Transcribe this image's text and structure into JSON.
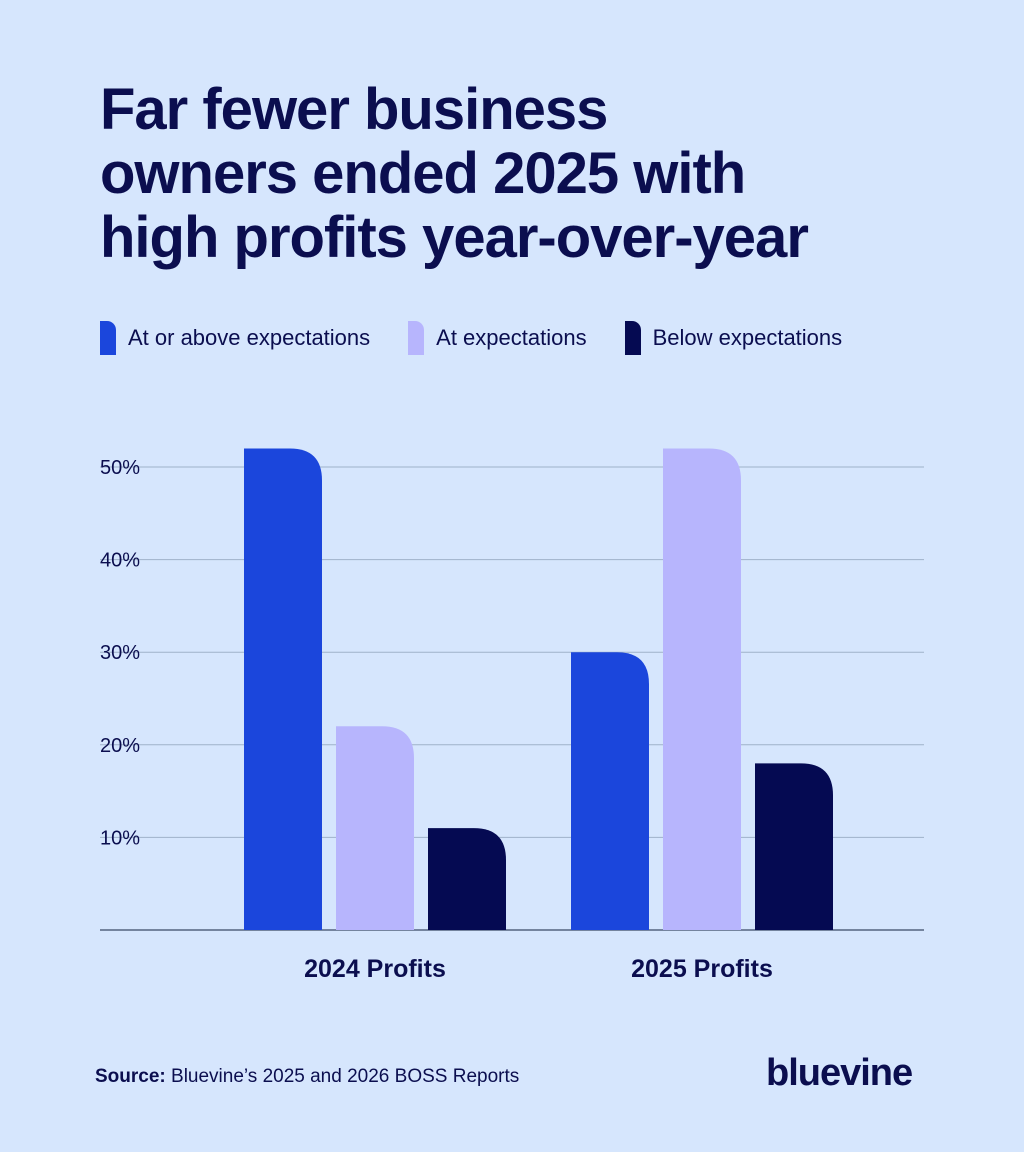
{
  "title_lines": [
    "Far fewer business",
    "owners ended 2025 with",
    "high profits year-over-year"
  ],
  "source_label": "Source:",
  "source_text": "Bluevine’s 2025 and 2026 BOSS Reports",
  "logo_text": "bluevine",
  "colors": {
    "background": "#d6e6fd",
    "text": "#0b0e4f",
    "gridline": "#9fb2c9",
    "series": [
      "#1b46dc",
      "#b7b5fd",
      "#050a52"
    ]
  },
  "chart_data": {
    "type": "bar",
    "title": "Far fewer business owners ended 2025 with high profits year-over-year",
    "categories": [
      "2024 Profits",
      "2025 Profits"
    ],
    "series": [
      {
        "name": "At or above expectations",
        "values": [
          52,
          30
        ]
      },
      {
        "name": "At expectations",
        "values": [
          22,
          52
        ]
      },
      {
        "name": "Below expectations",
        "values": [
          11,
          18
        ]
      }
    ],
    "yticks": [
      "10%",
      "20%",
      "30%",
      "40%",
      "50%"
    ],
    "ytick_values": [
      10,
      20,
      30,
      40,
      50
    ],
    "ylim": [
      0,
      50
    ],
    "xlabel": "",
    "ylabel": "",
    "grid": true,
    "legend_position": "top-left"
  }
}
